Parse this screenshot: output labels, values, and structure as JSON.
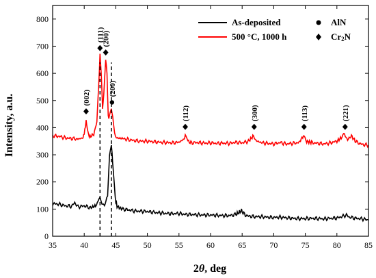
{
  "chart_data": {
    "type": "line",
    "xlabel_italic": "θ",
    "xlabel_prefix": "2",
    "xlabel_suffix": ", deg",
    "ylabel": "Intensity, a.u.",
    "xlim": [
      35,
      85
    ],
    "ylim": [
      0,
      850
    ],
    "x_ticks": [
      35,
      40,
      45,
      50,
      55,
      60,
      65,
      70,
      75,
      80,
      85
    ],
    "y_ticks": [
      0,
      100,
      200,
      300,
      400,
      500,
      600,
      700,
      800
    ],
    "series": [
      {
        "name": "As-deposited",
        "color": "#000000",
        "points": [
          [
            35,
            120
          ],
          [
            36,
            118
          ],
          [
            37,
            112
          ],
          [
            38,
            110
          ],
          [
            38.5,
            124
          ],
          [
            39,
            108
          ],
          [
            40,
            112
          ],
          [
            41,
            105
          ],
          [
            41.8,
            112
          ],
          [
            42.2,
            128
          ],
          [
            42.5,
            142
          ],
          [
            42.8,
            125
          ],
          [
            43.2,
            110
          ],
          [
            43.7,
            150
          ],
          [
            44.0,
            300
          ],
          [
            44.3,
            338
          ],
          [
            44.6,
            240
          ],
          [
            44.9,
            140
          ],
          [
            45.2,
            110
          ],
          [
            46,
            100
          ],
          [
            47,
            97
          ],
          [
            48,
            93
          ],
          [
            49,
            92
          ],
          [
            50,
            91
          ],
          [
            51,
            88
          ],
          [
            52,
            86
          ],
          [
            53,
            84
          ],
          [
            54,
            83
          ],
          [
            55,
            84
          ],
          [
            56,
            80
          ],
          [
            57,
            80
          ],
          [
            58,
            79
          ],
          [
            59,
            78
          ],
          [
            60,
            78
          ],
          [
            61,
            77
          ],
          [
            62,
            76
          ],
          [
            63,
            76
          ],
          [
            64,
            80
          ],
          [
            64.9,
            94
          ],
          [
            65.5,
            78
          ],
          [
            66,
            74
          ],
          [
            67,
            72
          ],
          [
            68,
            72
          ],
          [
            69,
            70
          ],
          [
            70,
            69
          ],
          [
            71,
            70
          ],
          [
            72,
            68
          ],
          [
            73,
            66
          ],
          [
            74,
            65
          ],
          [
            75,
            65
          ],
          [
            76,
            66
          ],
          [
            77,
            65
          ],
          [
            78,
            64
          ],
          [
            79,
            66
          ],
          [
            80,
            67
          ],
          [
            81,
            74
          ],
          [
            81.5,
            78
          ],
          [
            82,
            70
          ],
          [
            83,
            66
          ],
          [
            84,
            64
          ],
          [
            85,
            60
          ]
        ]
      },
      {
        "name": "500 °C, 1000 h",
        "color": "#ff0000",
        "points": [
          [
            35,
            370
          ],
          [
            36,
            368
          ],
          [
            37,
            362
          ],
          [
            38,
            360
          ],
          [
            39,
            358
          ],
          [
            39.8,
            362
          ],
          [
            40.1,
            390
          ],
          [
            40.3,
            425
          ],
          [
            40.5,
            395
          ],
          [
            40.8,
            365
          ],
          [
            41.5,
            375
          ],
          [
            42.0,
            420
          ],
          [
            42.3,
            560
          ],
          [
            42.5,
            670
          ],
          [
            42.7,
            600
          ],
          [
            42.9,
            470
          ],
          [
            43.1,
            520
          ],
          [
            43.4,
            655
          ],
          [
            43.6,
            600
          ],
          [
            43.8,
            440
          ],
          [
            44.0,
            440
          ],
          [
            44.3,
            470
          ],
          [
            44.5,
            440
          ],
          [
            44.8,
            380
          ],
          [
            45.2,
            362
          ],
          [
            46,
            360
          ],
          [
            47,
            356
          ],
          [
            48,
            352
          ],
          [
            49,
            350
          ],
          [
            50,
            350
          ],
          [
            51,
            348
          ],
          [
            52,
            346
          ],
          [
            53,
            345
          ],
          [
            54,
            344
          ],
          [
            55,
            346
          ],
          [
            55.8,
            358
          ],
          [
            56.1,
            375
          ],
          [
            56.4,
            350
          ],
          [
            57,
            344
          ],
          [
            58,
            345
          ],
          [
            59,
            343
          ],
          [
            60,
            344
          ],
          [
            61,
            342
          ],
          [
            62,
            343
          ],
          [
            63,
            342
          ],
          [
            64,
            346
          ],
          [
            65,
            344
          ],
          [
            66,
            350
          ],
          [
            66.8,
            370
          ],
          [
            67.2,
            352
          ],
          [
            68,
            345
          ],
          [
            69,
            342
          ],
          [
            70,
            340
          ],
          [
            71,
            345
          ],
          [
            72,
            340
          ],
          [
            73,
            342
          ],
          [
            74,
            345
          ],
          [
            74.7,
            370
          ],
          [
            75.1,
            350
          ],
          [
            76,
            345
          ],
          [
            77,
            342
          ],
          [
            78,
            340
          ],
          [
            79,
            344
          ],
          [
            80,
            350
          ],
          [
            80.8,
            365
          ],
          [
            81.2,
            375
          ],
          [
            81.7,
            355
          ],
          [
            82.3,
            370
          ],
          [
            83,
            348
          ],
          [
            84,
            338
          ],
          [
            85,
            335
          ]
        ]
      }
    ],
    "markers": {
      "AlN": {
        "symbol": "circle",
        "label": "AlN"
      },
      "Cr2N": {
        "symbol": "diamond",
        "label_main": "Cr",
        "label_sub": "2",
        "label_end": "N"
      }
    },
    "annotations": [
      {
        "x": 40.3,
        "y": 460,
        "symbol": "diamond",
        "label": "(002)"
      },
      {
        "x": 42.5,
        "y": 693,
        "symbol": "diamond",
        "label": "(111)"
      },
      {
        "x": 43.4,
        "y": 677,
        "symbol": "diamond",
        "label": "(200)"
      },
      {
        "x": 44.4,
        "y": 493,
        "symbol": "circle",
        "label": "(200)"
      },
      {
        "x": 56.0,
        "y": 403,
        "symbol": "diamond",
        "label": "(112)"
      },
      {
        "x": 66.9,
        "y": 403,
        "symbol": "diamond",
        "label": "(300)"
      },
      {
        "x": 74.8,
        "y": 403,
        "symbol": "diamond",
        "label": "(113)"
      },
      {
        "x": 81.3,
        "y": 403,
        "symbol": "diamond",
        "label": "(221)"
      }
    ],
    "reference_lines_x": [
      42.5,
      44.3
    ],
    "legend": {
      "position": "top-right"
    }
  }
}
